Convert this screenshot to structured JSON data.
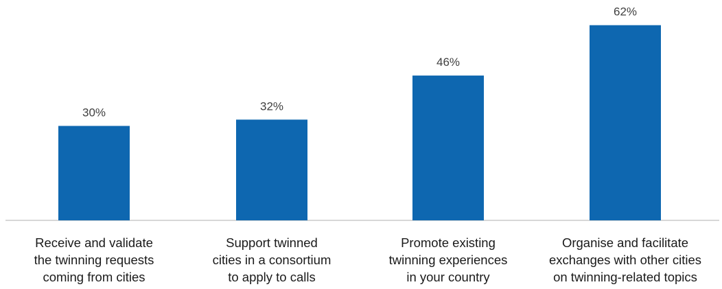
{
  "chart_data": {
    "type": "bar",
    "categories": [
      [
        "Receive and validate",
        "the twinning requests",
        "coming from cities"
      ],
      [
        "Support twinned",
        "cities in a consortium",
        "to apply to calls"
      ],
      [
        "Promote existing",
        "twinning experiences",
        "in your country"
      ],
      [
        "Organise and facilitate",
        "exchanges with other cities",
        "on twinning-related topics"
      ]
    ],
    "values": [
      30,
      32,
      46,
      62
    ],
    "value_labels": [
      "30%",
      "32%",
      "46%",
      "62%"
    ],
    "ylim": [
      0,
      70
    ],
    "grid": false,
    "bar_color": "#0e67b0",
    "axis_color": "#bfbfbf",
    "label_color": "#404040"
  }
}
